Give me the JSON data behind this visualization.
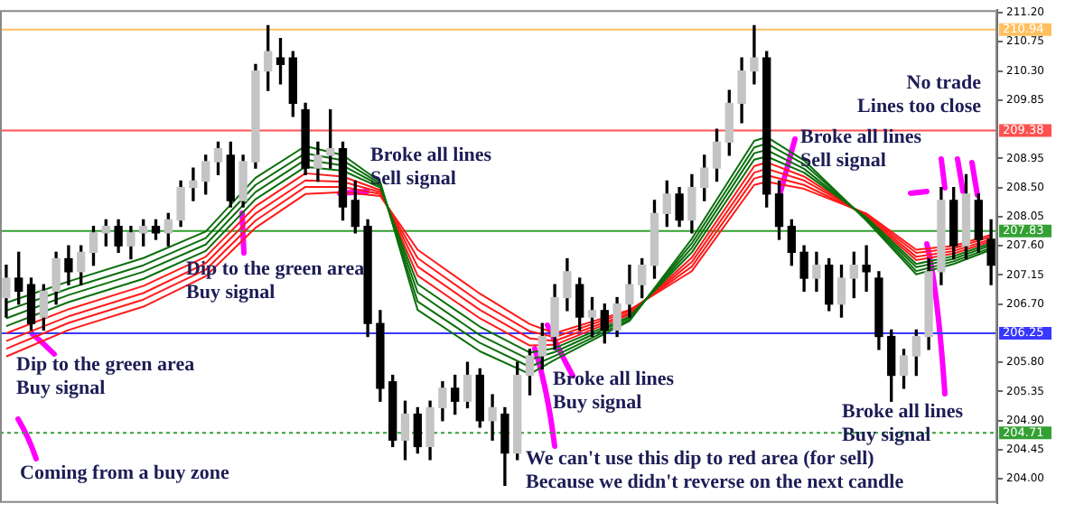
{
  "chart_data": {
    "type": "candlestick",
    "categories": [
      null,
      null,
      null,
      null,
      null,
      null,
      null,
      null,
      null,
      null,
      null,
      null,
      null,
      null,
      null,
      null,
      null,
      null,
      null,
      null,
      null,
      null,
      null,
      null,
      null,
      null,
      null,
      null,
      null,
      null,
      null,
      null,
      null,
      null,
      null,
      null,
      null,
      null,
      null,
      null,
      null,
      null,
      null,
      null,
      null,
      null,
      null,
      null,
      null,
      null,
      null,
      null,
      null,
      null,
      null,
      null,
      null,
      null,
      null,
      null,
      null,
      null,
      null,
      null,
      null,
      null,
      null,
      null,
      null,
      null,
      null,
      null,
      null,
      null,
      null,
      null,
      null,
      null,
      null,
      null
    ],
    "ohlc": [
      [
        206.8,
        207.3,
        206.5,
        207.1
      ],
      [
        207.1,
        207.5,
        206.7,
        206.9
      ],
      [
        207.0,
        207.1,
        206.3,
        206.4
      ],
      [
        206.5,
        207.0,
        206.3,
        206.9
      ],
      [
        206.9,
        207.5,
        206.7,
        207.4
      ],
      [
        207.4,
        207.6,
        207.0,
        207.2
      ],
      [
        207.2,
        207.6,
        207.0,
        207.5
      ],
      [
        207.5,
        207.9,
        207.3,
        207.8
      ],
      [
        207.8,
        208.0,
        207.6,
        207.9
      ],
      [
        207.9,
        208.0,
        207.5,
        207.6
      ],
      [
        207.6,
        207.9,
        207.4,
        207.8
      ],
      [
        207.8,
        208.0,
        207.6,
        207.9
      ],
      [
        207.9,
        208.0,
        207.7,
        207.8
      ],
      [
        207.8,
        208.1,
        207.6,
        208.0
      ],
      [
        208.0,
        208.6,
        207.9,
        208.5
      ],
      [
        208.5,
        208.8,
        208.3,
        208.6
      ],
      [
        208.6,
        209.0,
        208.4,
        208.9
      ],
      [
        208.9,
        209.2,
        208.7,
        209.1
      ],
      [
        209.0,
        209.2,
        208.2,
        208.3
      ],
      [
        208.3,
        209.0,
        208.2,
        208.9
      ],
      [
        208.9,
        210.4,
        208.8,
        210.3
      ],
      [
        210.3,
        211.0,
        210.0,
        210.6
      ],
      [
        210.5,
        210.8,
        210.1,
        210.4
      ],
      [
        210.5,
        210.6,
        209.6,
        209.8
      ],
      [
        209.7,
        209.8,
        208.7,
        208.8
      ],
      [
        208.8,
        209.2,
        208.6,
        209.0
      ],
      [
        209.0,
        209.7,
        208.8,
        209.1
      ],
      [
        209.1,
        209.2,
        208.0,
        208.2
      ],
      [
        208.3,
        208.6,
        207.8,
        207.9
      ],
      [
        207.9,
        208.0,
        206.2,
        206.4
      ],
      [
        206.4,
        206.6,
        205.2,
        205.4
      ],
      [
        205.5,
        205.6,
        204.5,
        204.6
      ],
      [
        204.6,
        205.2,
        204.3,
        205.0
      ],
      [
        205.0,
        205.1,
        204.4,
        204.5
      ],
      [
        204.5,
        205.2,
        204.3,
        205.1
      ],
      [
        205.1,
        205.5,
        204.9,
        205.4
      ],
      [
        205.4,
        205.6,
        205.0,
        205.2
      ],
      [
        205.2,
        205.8,
        205.1,
        205.6
      ],
      [
        205.6,
        205.7,
        204.8,
        204.9
      ],
      [
        204.9,
        205.3,
        204.6,
        205.1
      ],
      [
        205.0,
        205.1,
        203.9,
        204.4
      ],
      [
        204.4,
        205.8,
        204.3,
        205.6
      ],
      [
        205.6,
        206.0,
        205.3,
        205.9
      ],
      [
        205.9,
        206.4,
        205.7,
        206.2
      ],
      [
        206.2,
        207.0,
        206.0,
        206.8
      ],
      [
        206.8,
        207.4,
        206.6,
        207.2
      ],
      [
        207.0,
        207.1,
        206.3,
        206.5
      ],
      [
        206.5,
        206.8,
        206.2,
        206.6
      ],
      [
        206.6,
        206.7,
        206.1,
        206.3
      ],
      [
        206.3,
        206.8,
        206.2,
        206.7
      ],
      [
        206.7,
        207.3,
        206.5,
        207.0
      ],
      [
        207.0,
        207.4,
        206.8,
        207.3
      ],
      [
        207.3,
        208.3,
        207.1,
        208.1
      ],
      [
        208.1,
        208.6,
        207.9,
        208.4
      ],
      [
        208.4,
        208.5,
        207.9,
        208.0
      ],
      [
        208.0,
        208.7,
        207.8,
        208.5
      ],
      [
        208.5,
        209.0,
        208.3,
        208.8
      ],
      [
        208.8,
        209.4,
        208.6,
        209.2
      ],
      [
        209.2,
        210.0,
        209.0,
        209.8
      ],
      [
        209.8,
        210.5,
        209.5,
        210.3
      ],
      [
        210.3,
        211.0,
        210.1,
        210.5
      ],
      [
        210.5,
        210.6,
        208.2,
        208.4
      ],
      [
        208.4,
        208.6,
        207.7,
        207.9
      ],
      [
        207.9,
        208.0,
        207.3,
        207.5
      ],
      [
        207.5,
        207.6,
        206.9,
        207.1
      ],
      [
        207.1,
        207.5,
        206.9,
        207.3
      ],
      [
        207.3,
        207.4,
        206.6,
        206.7
      ],
      [
        206.7,
        207.3,
        206.5,
        207.1
      ],
      [
        207.1,
        207.5,
        206.8,
        207.3
      ],
      [
        207.3,
        207.6,
        206.9,
        207.2
      ],
      [
        207.1,
        207.2,
        206.0,
        206.2
      ],
      [
        206.2,
        206.3,
        205.2,
        205.6
      ],
      [
        205.6,
        206.0,
        205.4,
        205.9
      ],
      [
        205.9,
        206.3,
        205.6,
        206.2
      ],
      [
        206.2,
        207.4,
        206.0,
        207.2
      ],
      [
        207.2,
        208.5,
        207.0,
        208.3
      ],
      [
        208.3,
        208.5,
        207.4,
        207.6
      ],
      [
        207.6,
        208.7,
        207.4,
        208.4
      ],
      [
        208.3,
        208.4,
        207.5,
        207.7
      ],
      [
        207.7,
        208.0,
        207.0,
        207.3
      ]
    ],
    "series": [
      {
        "type": "line",
        "color": "#0b6e0b",
        "values": [
          206.72,
          null,
          null,
          null,
          null,
          207.05,
          null,
          null,
          null,
          null,
          null,
          207.41,
          null,
          null,
          null,
          null,
          207.82,
          null,
          null,
          null,
          208.65,
          null,
          null,
          null,
          209.14,
          null,
          null,
          209.0,
          null,
          null,
          208.59,
          null,
          null,
          206.61,
          null,
          null,
          null,
          null,
          205.97,
          null,
          null,
          null,
          205.62,
          null,
          205.84,
          null,
          null,
          null,
          null,
          null,
          206.44,
          null,
          null,
          null,
          null,
          207.71,
          null,
          null,
          null,
          null,
          209.22,
          209.28,
          null,
          null,
          208.92,
          null,
          null,
          null,
          null,
          207.99,
          null,
          null,
          null,
          207.16,
          null,
          null,
          207.32,
          null,
          null,
          207.54
        ]
      },
      {
        "type": "line",
        "color": "#0b6e0b",
        "values": [
          206.6,
          null,
          null,
          null,
          null,
          206.94,
          null,
          null,
          null,
          null,
          null,
          207.3,
          null,
          null,
          null,
          null,
          207.72,
          null,
          null,
          null,
          208.54,
          null,
          null,
          null,
          209.03,
          null,
          null,
          208.92,
          null,
          null,
          208.56,
          null,
          null,
          206.74,
          null,
          null,
          null,
          null,
          206.1,
          null,
          null,
          null,
          205.73,
          null,
          205.9,
          null,
          null,
          null,
          null,
          null,
          206.46,
          null,
          null,
          null,
          null,
          207.64,
          null,
          null,
          null,
          null,
          209.12,
          209.18,
          null,
          null,
          208.86,
          null,
          null,
          null,
          null,
          208.01,
          null,
          null,
          null,
          207.21,
          null,
          null,
          207.36,
          null,
          null,
          207.57
        ]
      },
      {
        "type": "line",
        "color": "#0b6e0b",
        "values": [
          206.48,
          null,
          null,
          null,
          null,
          206.84,
          null,
          null,
          null,
          null,
          null,
          207.2,
          null,
          null,
          null,
          null,
          207.62,
          null,
          null,
          null,
          208.43,
          null,
          null,
          null,
          208.93,
          null,
          null,
          208.84,
          null,
          null,
          208.53,
          null,
          null,
          206.88,
          null,
          null,
          null,
          null,
          206.22,
          null,
          null,
          null,
          205.84,
          null,
          205.96,
          null,
          null,
          null,
          null,
          null,
          206.49,
          null,
          null,
          null,
          null,
          207.57,
          null,
          null,
          null,
          null,
          209.03,
          209.08,
          null,
          null,
          208.79,
          null,
          null,
          null,
          null,
          208.02,
          null,
          null,
          null,
          207.27,
          null,
          null,
          207.4,
          null,
          null,
          207.61
        ]
      },
      {
        "type": "line",
        "color": "#0b6e0b",
        "values": [
          206.36,
          null,
          null,
          null,
          null,
          206.73,
          null,
          null,
          null,
          null,
          null,
          207.09,
          null,
          null,
          null,
          null,
          207.52,
          null,
          null,
          null,
          208.32,
          null,
          null,
          null,
          208.82,
          null,
          null,
          208.76,
          null,
          null,
          208.5,
          null,
          null,
          207.01,
          null,
          null,
          null,
          null,
          206.35,
          null,
          null,
          null,
          205.95,
          null,
          206.02,
          null,
          null,
          null,
          null,
          null,
          206.51,
          null,
          null,
          null,
          null,
          207.5,
          null,
          null,
          null,
          null,
          208.93,
          208.98,
          null,
          null,
          208.73,
          null,
          null,
          null,
          null,
          208.04,
          null,
          null,
          null,
          207.32,
          null,
          null,
          207.44,
          null,
          null,
          207.64
        ]
      },
      {
        "type": "line",
        "color": "#ff1a1a",
        "values": [
          206.25,
          null,
          null,
          null,
          null,
          206.62,
          null,
          null,
          null,
          null,
          null,
          206.98,
          null,
          null,
          null,
          null,
          207.43,
          null,
          null,
          null,
          208.21,
          null,
          null,
          null,
          208.72,
          null,
          null,
          208.67,
          null,
          null,
          208.46,
          null,
          null,
          207.14,
          null,
          null,
          null,
          null,
          206.48,
          null,
          null,
          null,
          206.06,
          null,
          206.07,
          null,
          null,
          null,
          null,
          null,
          206.54,
          null,
          null,
          null,
          null,
          207.42,
          null,
          null,
          null,
          null,
          208.83,
          208.89,
          null,
          null,
          208.67,
          null,
          null,
          null,
          null,
          208.05,
          null,
          null,
          null,
          207.38,
          null,
          null,
          207.48,
          null,
          null,
          207.67
        ]
      },
      {
        "type": "line",
        "color": "#ff1a1a",
        "values": [
          206.13,
          null,
          null,
          null,
          null,
          206.51,
          null,
          null,
          null,
          null,
          null,
          206.87,
          null,
          null,
          null,
          null,
          207.33,
          null,
          null,
          null,
          208.1,
          null,
          null,
          null,
          208.61,
          null,
          null,
          208.59,
          null,
          null,
          208.43,
          null,
          null,
          207.28,
          null,
          null,
          null,
          null,
          206.61,
          null,
          null,
          null,
          206.17,
          null,
          206.13,
          null,
          null,
          null,
          null,
          null,
          206.56,
          null,
          null,
          null,
          null,
          207.35,
          null,
          null,
          null,
          null,
          208.73,
          208.79,
          null,
          null,
          208.61,
          null,
          null,
          null,
          null,
          208.07,
          null,
          null,
          null,
          207.43,
          null,
          null,
          207.52,
          null,
          null,
          207.7
        ]
      },
      {
        "type": "line",
        "color": "#ff1a1a",
        "values": [
          206.01,
          null,
          null,
          null,
          null,
          206.41,
          null,
          null,
          null,
          null,
          null,
          206.77,
          null,
          null,
          null,
          null,
          207.23,
          null,
          null,
          null,
          207.99,
          null,
          null,
          null,
          208.51,
          null,
          null,
          208.51,
          null,
          null,
          208.4,
          null,
          null,
          207.41,
          null,
          null,
          null,
          null,
          206.73,
          null,
          null,
          null,
          206.28,
          null,
          206.19,
          null,
          null,
          null,
          null,
          null,
          206.59,
          null,
          null,
          null,
          null,
          207.28,
          null,
          null,
          null,
          null,
          208.64,
          208.69,
          null,
          null,
          208.54,
          null,
          null,
          null,
          null,
          208.08,
          null,
          null,
          null,
          207.49,
          null,
          null,
          207.56,
          null,
          null,
          207.74
        ]
      },
      {
        "type": "line",
        "color": "#ff1a1a",
        "values": [
          205.89,
          null,
          null,
          null,
          null,
          206.3,
          null,
          null,
          null,
          null,
          null,
          206.66,
          null,
          null,
          null,
          null,
          207.13,
          null,
          null,
          null,
          207.88,
          null,
          null,
          null,
          208.4,
          null,
          null,
          208.43,
          null,
          null,
          208.37,
          null,
          null,
          207.54,
          null,
          null,
          null,
          null,
          206.86,
          null,
          null,
          null,
          206.39,
          null,
          206.25,
          null,
          null,
          null,
          null,
          null,
          206.61,
          null,
          null,
          null,
          null,
          207.21,
          null,
          null,
          null,
          null,
          208.54,
          208.59,
          null,
          null,
          208.48,
          null,
          null,
          null,
          null,
          208.1,
          null,
          null,
          null,
          207.54,
          null,
          null,
          207.6,
          null,
          null,
          207.77
        ]
      }
    ],
    "ylim": [
      203.63,
      211.24
    ],
    "yticks": [
      {
        "value": 211.2,
        "label": "211.20"
      },
      {
        "value": 210.75,
        "label": "210.75"
      },
      {
        "value": 210.3,
        "label": "210.30"
      },
      {
        "value": 209.85,
        "label": "209.85"
      },
      {
        "value": 208.95,
        "label": "208.95"
      },
      {
        "value": 208.5,
        "label": "208.50"
      },
      {
        "value": 208.05,
        "label": "208.05"
      },
      {
        "value": 207.6,
        "label": "207.60"
      },
      {
        "value": 207.15,
        "label": "207.15"
      },
      {
        "value": 206.7,
        "label": "206.70"
      },
      {
        "value": 205.8,
        "label": "205.80"
      },
      {
        "value": 205.35,
        "label": "205.35"
      },
      {
        "value": 204.9,
        "label": "204.90"
      },
      {
        "value": 204.45,
        "label": "204.45"
      },
      {
        "value": 204.0,
        "label": "204.00"
      }
    ],
    "tick_labels": "y",
    "ref_lines": [
      {
        "axis": "y",
        "value": 210.94,
        "label": "210.94",
        "color": "#ffc060"
      },
      {
        "axis": "y",
        "value": 209.38,
        "label": "209.38",
        "color": "#ff5050"
      },
      {
        "axis": "y",
        "value": 207.83,
        "label": "207.83",
        "color": "#33a033"
      },
      {
        "axis": "y",
        "value": 206.25,
        "label": "206.25",
        "color": "#3838ff"
      },
      {
        "axis": "y",
        "value": 204.71,
        "label": "204.71",
        "color": "#33a033",
        "line_style": "dotted"
      }
    ],
    "annotations": [
      "Dip to the green area\nBuy signal",
      "Coming from a buy zone",
      "Dip to the green area\nBuy signal",
      "Broke all lines\nSell signal",
      "Broke all lines\nBuy signal",
      "We can't use this dip to red area (for sell)\nBecause we didn't reverse on the next candle",
      "Broke all lines\nSell signal",
      "Broke all lines\nBuy signal",
      "No trade\nLines too close"
    ],
    "grid": false,
    "legend": false
  }
}
